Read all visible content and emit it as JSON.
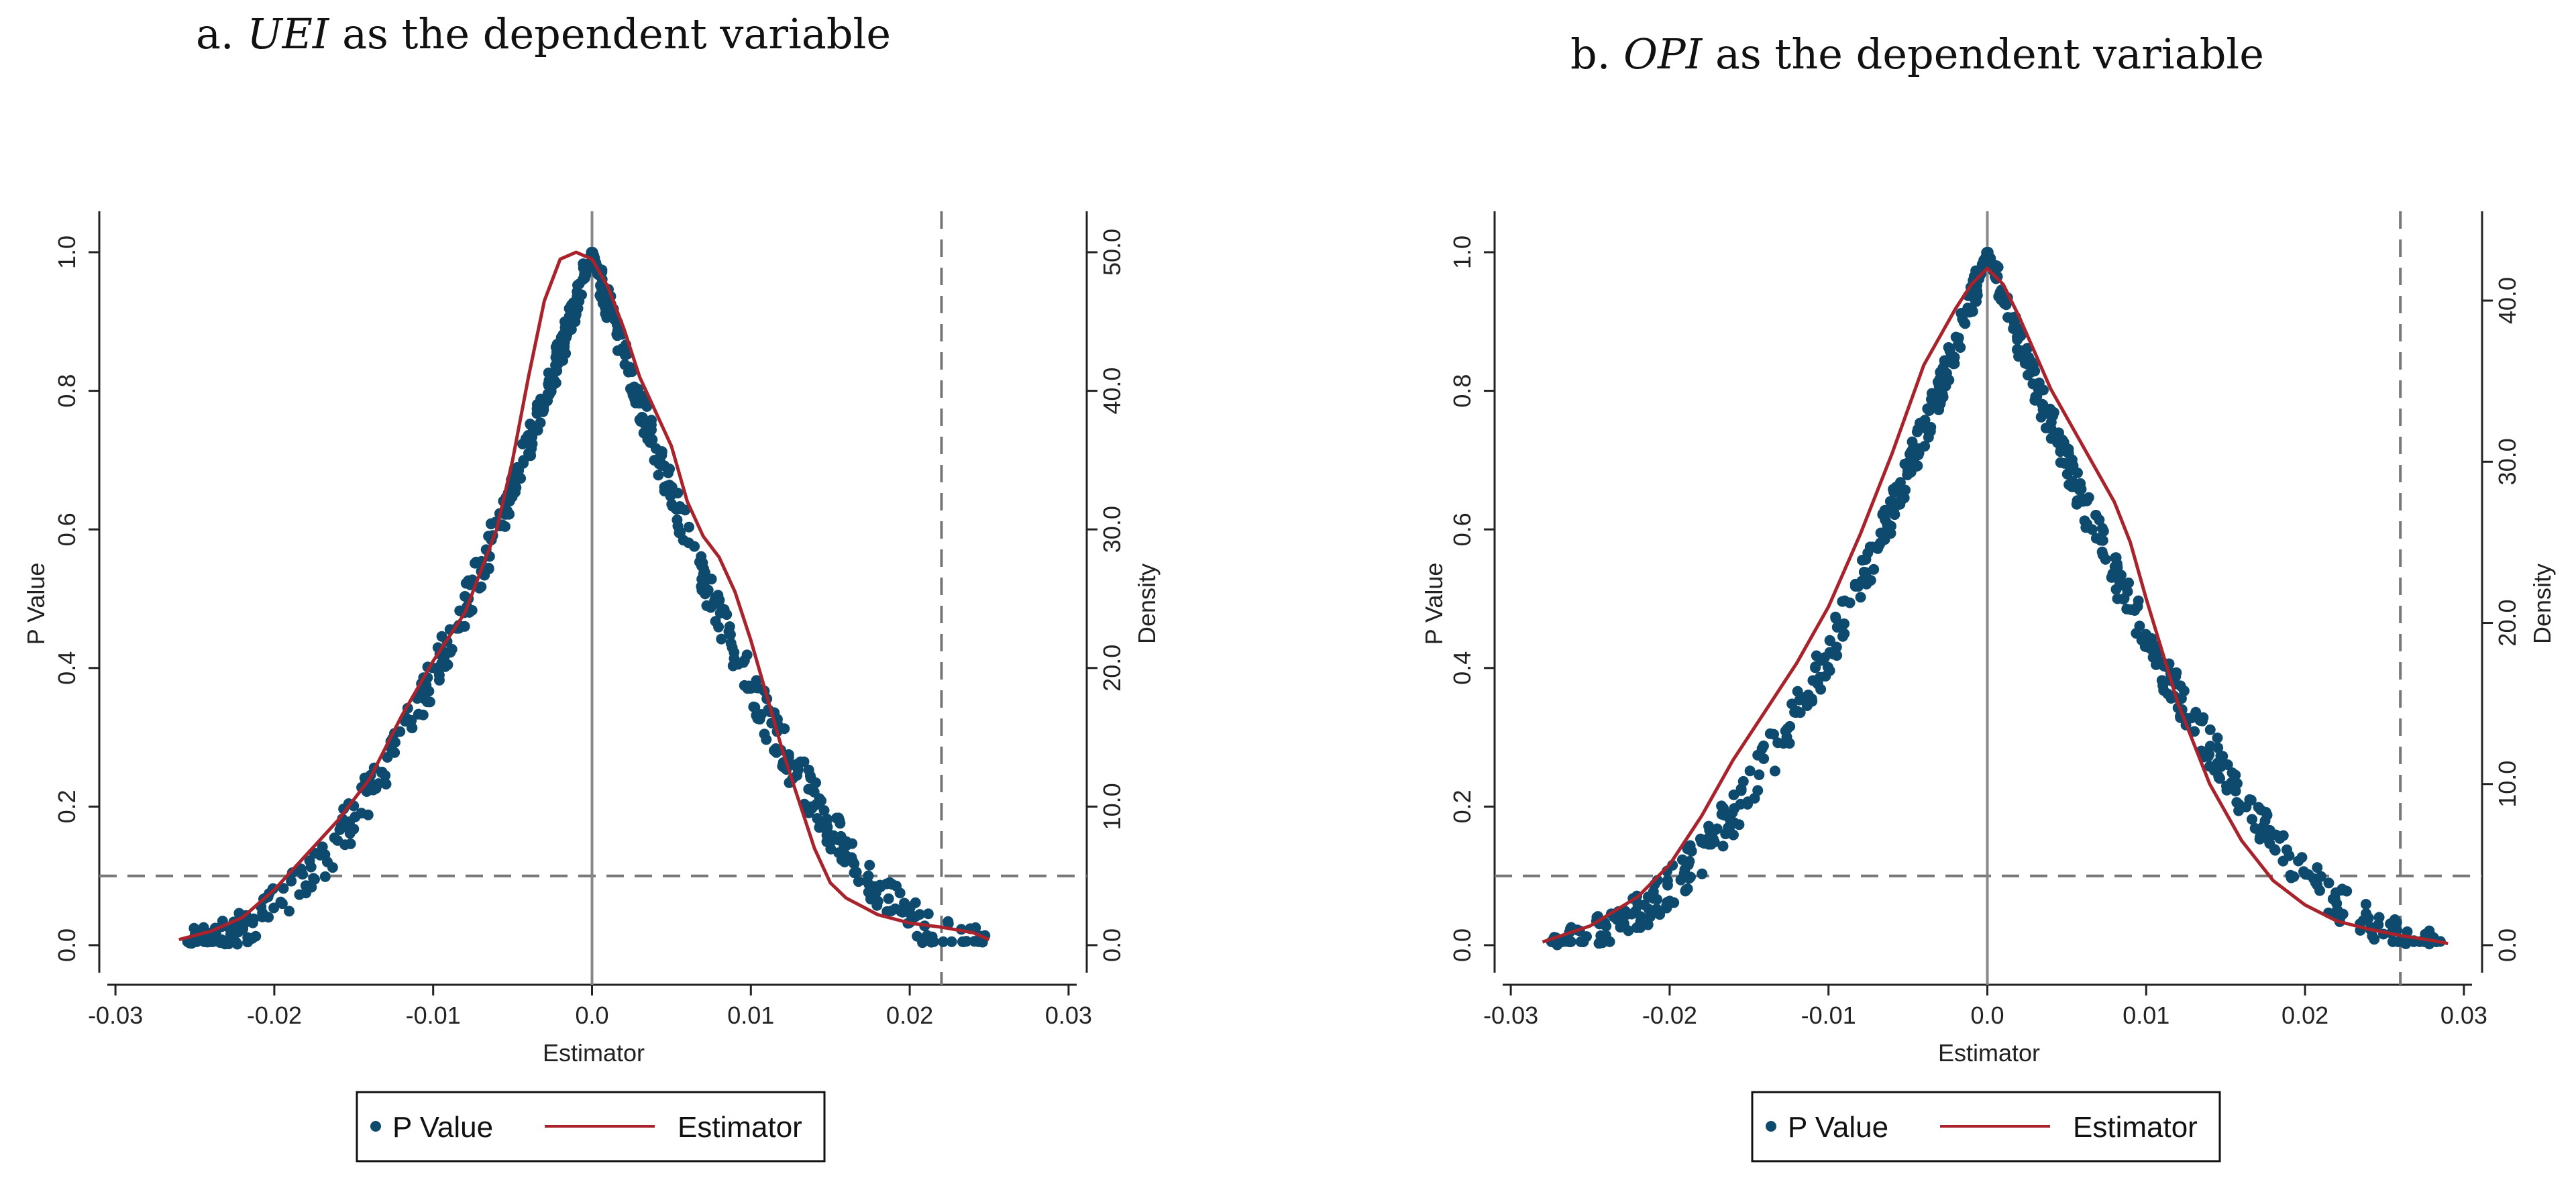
{
  "chart_data": [
    {
      "id": "a",
      "type": "scatter",
      "title_prefix": "a.",
      "title_var": "UEI",
      "title_suffix": "as the dependent variable",
      "xlabel": "Estimator",
      "ylabel": "P Value",
      "y2label": "Density",
      "xlim": [
        -0.03,
        0.03
      ],
      "ylim": [
        0,
        1
      ],
      "y2lim": [
        0,
        50
      ],
      "xticks": [
        "-0.03",
        "-0.02",
        "-0.01",
        "0.0",
        "0.01",
        "0.02",
        "0.03"
      ],
      "xtick_values": [
        -0.03,
        -0.02,
        -0.01,
        0,
        0.01,
        0.02,
        0.03
      ],
      "yticks": [
        "0.0",
        "0.2",
        "0.4",
        "0.6",
        "0.8",
        "1.0"
      ],
      "ytick_values": [
        0,
        0.2,
        0.4,
        0.6,
        0.8,
        1.0
      ],
      "y2ticks": [
        "0.0",
        "10.0",
        "20.0",
        "30.0",
        "40.0",
        "50.0"
      ],
      "y2tick_values": [
        0,
        10,
        20,
        30,
        40,
        50
      ],
      "hline_p": 0.1,
      "vline_solid": 0,
      "vline_dashed": 0.022,
      "series": [
        {
          "name": "P Value",
          "kind": "scatter",
          "color": "#0d4a6e",
          "estimator_range": [
            -0.0255,
            0.0248
          ],
          "spread": 1.0
        },
        {
          "name": "Estimator",
          "kind": "density",
          "color": "#a8232b",
          "x": [
            -0.026,
            -0.024,
            -0.022,
            -0.02,
            -0.018,
            -0.016,
            -0.014,
            -0.012,
            -0.01,
            -0.008,
            -0.006,
            -0.005,
            -0.004,
            -0.003,
            -0.002,
            -0.001,
            0,
            0.001,
            0.002,
            0.003,
            0.004,
            0.005,
            0.006,
            0.007,
            0.008,
            0.009,
            0.01,
            0.011,
            0.012,
            0.013,
            0.014,
            0.015,
            0.016,
            0.017,
            0.018,
            0.02,
            0.022,
            0.024,
            0.025
          ],
          "y": [
            0.4,
            1.0,
            2.0,
            4.0,
            6.5,
            9.0,
            12.0,
            16.5,
            20.5,
            24.0,
            30.0,
            35.0,
            41.0,
            46.5,
            49.5,
            50.0,
            49.5,
            47.5,
            44.5,
            41.0,
            38.5,
            36.0,
            32.0,
            29.5,
            28.0,
            25.5,
            22.0,
            18.0,
            14.0,
            10.5,
            7.0,
            4.5,
            3.4,
            2.8,
            2.2,
            1.6,
            1.3,
            0.9,
            0.4
          ]
        }
      ],
      "legend": [
        "P Value",
        "Estimator"
      ]
    },
    {
      "id": "b",
      "type": "scatter",
      "title_prefix": "b.",
      "title_var": "OPI",
      "title_suffix": "as the dependent variable",
      "xlabel": "Estimator",
      "ylabel": "P Value",
      "y2label": "Density",
      "xlim": [
        -0.03,
        0.03
      ],
      "ylim": [
        0,
        1
      ],
      "y2lim": [
        0,
        43
      ],
      "xticks": [
        "-0.03",
        "-0.02",
        "-0.01",
        "0.0",
        "0.01",
        "0.02",
        "0.03"
      ],
      "xtick_values": [
        -0.03,
        -0.02,
        -0.01,
        0,
        0.01,
        0.02,
        0.03
      ],
      "yticks": [
        "0.0",
        "0.2",
        "0.4",
        "0.6",
        "0.8",
        "1.0"
      ],
      "ytick_values": [
        0,
        0.2,
        0.4,
        0.6,
        0.8,
        1.0
      ],
      "y2ticks": [
        "0.0",
        "10.0",
        "20.0",
        "30.0",
        "40.0"
      ],
      "y2tick_values": [
        0,
        10,
        20,
        30,
        40
      ],
      "hline_p": 0.1,
      "vline_solid": 0,
      "vline_dashed": 0.026,
      "series": [
        {
          "name": "P Value",
          "kind": "scatter",
          "color": "#0d4a6e",
          "estimator_range": [
            -0.0275,
            0.0288
          ],
          "spread": 1.0
        },
        {
          "name": "Estimator",
          "kind": "density",
          "color": "#a8232b",
          "x": [
            -0.028,
            -0.025,
            -0.022,
            -0.02,
            -0.018,
            -0.016,
            -0.014,
            -0.012,
            -0.01,
            -0.008,
            -0.006,
            -0.004,
            -0.002,
            -0.001,
            0,
            0.001,
            0.002,
            0.004,
            0.006,
            0.008,
            0.009,
            0.01,
            0.012,
            0.014,
            0.016,
            0.018,
            0.02,
            0.022,
            0.024,
            0.026,
            0.028,
            0.029
          ],
          "y": [
            0.2,
            1.2,
            3.0,
            5.0,
            8.0,
            11.5,
            14.5,
            17.5,
            21.0,
            25.5,
            30.5,
            36.0,
            39.5,
            41.0,
            42.0,
            41.0,
            39.0,
            34.5,
            31.0,
            27.5,
            25.0,
            21.5,
            15.0,
            10.0,
            6.5,
            4.0,
            2.5,
            1.5,
            1.0,
            0.6,
            0.3,
            0.1
          ]
        }
      ],
      "legend": [
        "P Value",
        "Estimator"
      ]
    }
  ]
}
